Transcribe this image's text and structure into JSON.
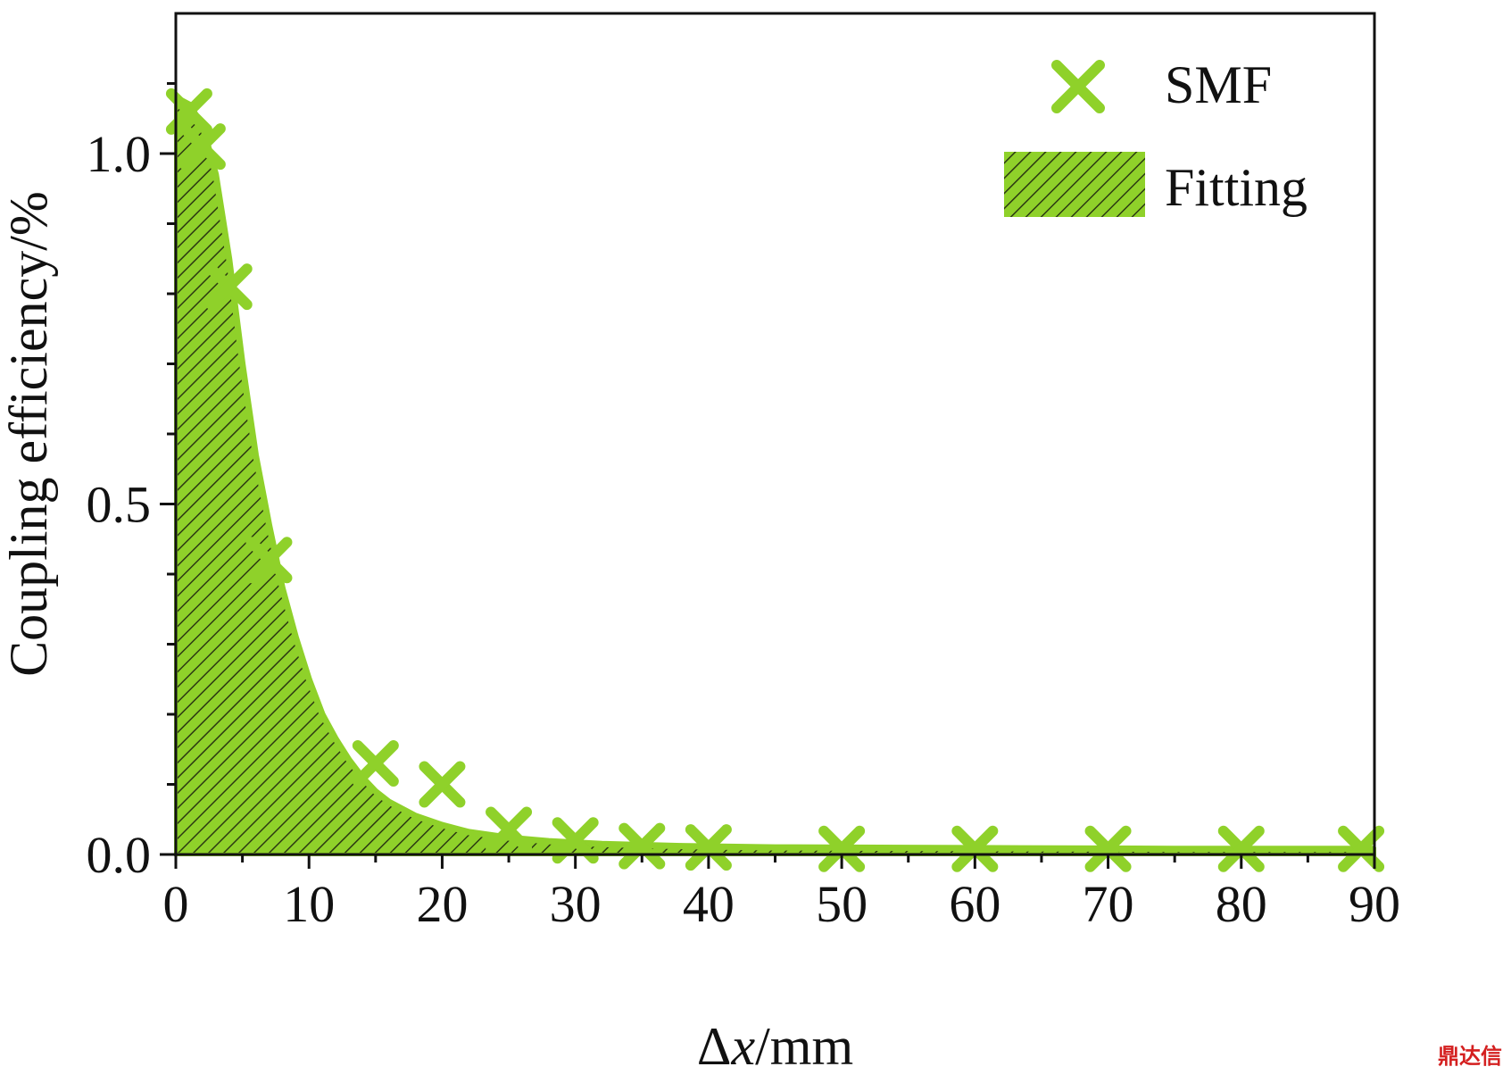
{
  "chart_data": {
    "type": "scatter",
    "xlabel_prefix": "Δ",
    "xlabel_var": "x",
    "xlabel_unit": "/mm",
    "ylabel": "Coupling efficiency/%",
    "xlim": [
      0,
      90
    ],
    "ylim": [
      0,
      1.2
    ],
    "x_ticks": [
      0,
      10,
      20,
      30,
      40,
      50,
      60,
      70,
      80,
      90
    ],
    "x_tick_labels": [
      "0",
      "10",
      "20",
      "30",
      "40",
      "50",
      "60",
      "70",
      "80",
      "90"
    ],
    "y_ticks": [
      0.0,
      0.5,
      1.0
    ],
    "y_tick_labels": [
      "0.0",
      "0.5",
      "1.0"
    ],
    "grid": false,
    "legend_position": "top-right",
    "series": [
      {
        "name": "SMF",
        "kind": "scatter",
        "marker": "x",
        "color": "#8fd12a",
        "points": [
          {
            "x": 1,
            "y": 1.06
          },
          {
            "x": 2,
            "y": 1.01
          },
          {
            "x": 4,
            "y": 0.81
          },
          {
            "x": 7,
            "y": 0.42
          },
          {
            "x": 15,
            "y": 0.13
          },
          {
            "x": 20,
            "y": 0.1
          },
          {
            "x": 25,
            "y": 0.035
          },
          {
            "x": 30,
            "y": 0.02
          },
          {
            "x": 35,
            "y": 0.012
          },
          {
            "x": 40,
            "y": 0.01
          },
          {
            "x": 50,
            "y": 0.008
          },
          {
            "x": 60,
            "y": 0.008
          },
          {
            "x": 70,
            "y": 0.008
          },
          {
            "x": 80,
            "y": 0.008
          },
          {
            "x": 89,
            "y": 0.008
          }
        ]
      },
      {
        "name": "Fitting",
        "kind": "area",
        "color": "#8fd12a",
        "hatch_color": "#2c3a12",
        "points": [
          {
            "x": 0,
            "y": 1.08
          },
          {
            "x": 1,
            "y": 1.07
          },
          {
            "x": 2,
            "y": 1.04
          },
          {
            "x": 3,
            "y": 0.97
          },
          {
            "x": 4,
            "y": 0.85
          },
          {
            "x": 5,
            "y": 0.7
          },
          {
            "x": 6,
            "y": 0.57
          },
          {
            "x": 7,
            "y": 0.47
          },
          {
            "x": 8,
            "y": 0.38
          },
          {
            "x": 9,
            "y": 0.31
          },
          {
            "x": 10,
            "y": 0.25
          },
          {
            "x": 11,
            "y": 0.2
          },
          {
            "x": 12,
            "y": 0.165
          },
          {
            "x": 13,
            "y": 0.135
          },
          {
            "x": 14,
            "y": 0.11
          },
          {
            "x": 15,
            "y": 0.09
          },
          {
            "x": 16,
            "y": 0.075
          },
          {
            "x": 18,
            "y": 0.055
          },
          {
            "x": 20,
            "y": 0.042
          },
          {
            "x": 22,
            "y": 0.032
          },
          {
            "x": 25,
            "y": 0.024
          },
          {
            "x": 28,
            "y": 0.019
          },
          {
            "x": 32,
            "y": 0.015
          },
          {
            "x": 38,
            "y": 0.012
          },
          {
            "x": 45,
            "y": 0.01
          },
          {
            "x": 60,
            "y": 0.009
          },
          {
            "x": 75,
            "y": 0.008
          },
          {
            "x": 90,
            "y": 0.008
          }
        ]
      }
    ]
  },
  "watermark": "鼎达信"
}
